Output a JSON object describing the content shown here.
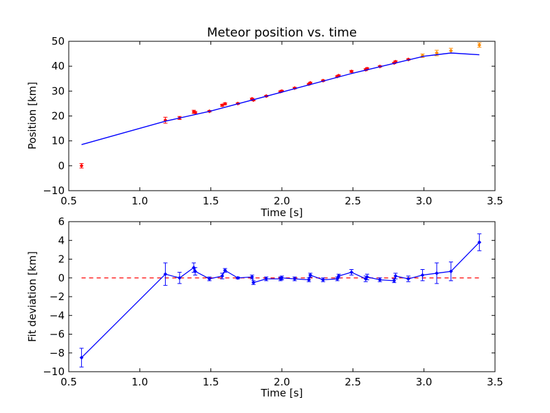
{
  "chart_data": [
    {
      "type": "scatter",
      "title": "Meteor position vs. time",
      "xlabel": "Time [s]",
      "ylabel": "Position [km]",
      "xlim": [
        0.5,
        3.5
      ],
      "ylim": [
        -10,
        50
      ],
      "xticks": [
        0.5,
        1.0,
        1.5,
        2.0,
        2.5,
        3.0,
        3.5
      ],
      "yticks": [
        -10,
        0,
        10,
        20,
        30,
        40,
        50
      ],
      "xtick_labels": [
        "0.5",
        "1.0",
        "1.5",
        "2.0",
        "2.5",
        "3.0",
        "3.5"
      ],
      "ytick_labels": [
        "−10",
        "0",
        "10",
        "20",
        "30",
        "40",
        "50"
      ],
      "grid": false,
      "colors": {
        "measured": "#ff0000",
        "late": "#ff8c00",
        "fit": "#0000ff"
      },
      "series": [
        {
          "points": [
            {
              "x": 0.59,
              "y": 0.0,
              "err": 0.9
            },
            {
              "x": 1.18,
              "y": 18.3,
              "err": 1.2
            },
            {
              "x": 1.28,
              "y": 19.2,
              "err": 0.6
            },
            {
              "x": 1.38,
              "y": 21.7,
              "err": 0.6
            },
            {
              "x": 1.39,
              "y": 21.4,
              "err": 0.4
            },
            {
              "x": 1.49,
              "y": 21.9,
              "err": 0.3
            },
            {
              "x": 1.58,
              "y": 24.3,
              "err": 0.4
            },
            {
              "x": 1.6,
              "y": 24.9,
              "err": 0.4
            },
            {
              "x": 1.69,
              "y": 25.0,
              "err": 0.3
            },
            {
              "x": 1.79,
              "y": 26.9,
              "err": 0.3
            },
            {
              "x": 1.8,
              "y": 26.4,
              "err": 0.3
            },
            {
              "x": 1.89,
              "y": 28.0,
              "err": 0.3
            },
            {
              "x": 1.99,
              "y": 29.8,
              "err": 0.3
            },
            {
              "x": 2.0,
              "y": 30.0,
              "err": 0.3
            },
            {
              "x": 2.09,
              "y": 31.2,
              "err": 0.3
            },
            {
              "x": 2.19,
              "y": 32.8,
              "err": 0.3
            },
            {
              "x": 2.2,
              "y": 33.3,
              "err": 0.3
            },
            {
              "x": 2.29,
              "y": 34.2,
              "err": 0.3
            },
            {
              "x": 2.39,
              "y": 35.9,
              "err": 0.3
            },
            {
              "x": 2.4,
              "y": 36.2,
              "err": 0.3
            },
            {
              "x": 2.49,
              "y": 37.9,
              "err": 0.4
            },
            {
              "x": 2.59,
              "y": 38.6,
              "err": 0.4
            },
            {
              "x": 2.6,
              "y": 39.0,
              "err": 0.4
            },
            {
              "x": 2.69,
              "y": 39.9,
              "err": 0.3
            },
            {
              "x": 2.79,
              "y": 41.3,
              "err": 0.3
            },
            {
              "x": 2.8,
              "y": 41.8,
              "err": 0.4
            },
            {
              "x": 2.89,
              "y": 42.7,
              "err": 0.3
            }
          ]
        },
        {
          "points": [
            {
              "x": 2.99,
              "y": 44.2,
              "err": 0.7
            },
            {
              "x": 3.09,
              "y": 45.3,
              "err": 1.1
            },
            {
              "x": 3.19,
              "y": 46.2,
              "err": 1.0
            },
            {
              "x": 3.39,
              "y": 48.5,
              "err": 0.9
            }
          ]
        },
        {
          "type": "line",
          "x": [
            0.59,
            1.18,
            1.5,
            2.0,
            2.5,
            3.0,
            3.19,
            3.39
          ],
          "y": [
            8.5,
            17.9,
            22.0,
            29.6,
            37.2,
            44.0,
            45.3,
            44.6
          ]
        }
      ]
    },
    {
      "type": "line",
      "xlabel": "Time [s]",
      "ylabel": "Fit deviation [km]",
      "xlim": [
        0.5,
        3.5
      ],
      "ylim": [
        -10,
        6
      ],
      "xticks": [
        0.5,
        1.0,
        1.5,
        2.0,
        2.5,
        3.0,
        3.5
      ],
      "yticks": [
        -10,
        -8,
        -6,
        -4,
        -2,
        0,
        2,
        4,
        6
      ],
      "xtick_labels": [
        "0.5",
        "1.0",
        "1.5",
        "2.0",
        "2.5",
        "3.0",
        "3.5"
      ],
      "ytick_labels": [
        "−10",
        "−8",
        "−6",
        "−4",
        "−2",
        "0",
        "2",
        "4",
        "6"
      ],
      "grid": false,
      "zero_line": true,
      "colors": {
        "deviation": "#0000ff",
        "zero": "#ff0000"
      },
      "series": [
        {
          "points": [
            {
              "x": 0.59,
              "y": -8.5,
              "err": 1.0
            },
            {
              "x": 1.18,
              "y": 0.4,
              "err": 1.2
            },
            {
              "x": 1.28,
              "y": 0.0,
              "err": 0.6
            },
            {
              "x": 1.38,
              "y": 1.1,
              "err": 0.5
            },
            {
              "x": 1.39,
              "y": 0.7,
              "err": 0.4
            },
            {
              "x": 1.49,
              "y": -0.1,
              "err": 0.2
            },
            {
              "x": 1.58,
              "y": 0.2,
              "err": 0.3
            },
            {
              "x": 1.6,
              "y": 0.8,
              "err": 0.2
            },
            {
              "x": 1.69,
              "y": 0.0,
              "err": 0.1
            },
            {
              "x": 1.79,
              "y": 0.1,
              "err": 0.2
            },
            {
              "x": 1.8,
              "y": -0.5,
              "err": 0.2
            },
            {
              "x": 1.89,
              "y": -0.1,
              "err": 0.2
            },
            {
              "x": 1.99,
              "y": -0.1,
              "err": 0.2
            },
            {
              "x": 2.0,
              "y": 0.0,
              "err": 0.2
            },
            {
              "x": 2.09,
              "y": -0.1,
              "err": 0.2
            },
            {
              "x": 2.19,
              "y": -0.2,
              "err": 0.2
            },
            {
              "x": 2.2,
              "y": 0.3,
              "err": 0.2
            },
            {
              "x": 2.29,
              "y": -0.2,
              "err": 0.2
            },
            {
              "x": 2.39,
              "y": -0.1,
              "err": 0.2
            },
            {
              "x": 2.4,
              "y": 0.2,
              "err": 0.2
            },
            {
              "x": 2.49,
              "y": 0.6,
              "err": 0.3
            },
            {
              "x": 2.59,
              "y": -0.1,
              "err": 0.3
            },
            {
              "x": 2.6,
              "y": 0.1,
              "err": 0.3
            },
            {
              "x": 2.69,
              "y": -0.2,
              "err": 0.2
            },
            {
              "x": 2.79,
              "y": -0.3,
              "err": 0.2
            },
            {
              "x": 2.8,
              "y": 0.2,
              "err": 0.3
            },
            {
              "x": 2.89,
              "y": -0.1,
              "err": 0.3
            },
            {
              "x": 2.99,
              "y": 0.3,
              "err": 0.6
            },
            {
              "x": 3.09,
              "y": 0.5,
              "err": 1.1
            },
            {
              "x": 3.19,
              "y": 0.7,
              "err": 1.0
            },
            {
              "x": 3.39,
              "y": 3.8,
              "err": 0.9
            }
          ]
        }
      ]
    }
  ]
}
